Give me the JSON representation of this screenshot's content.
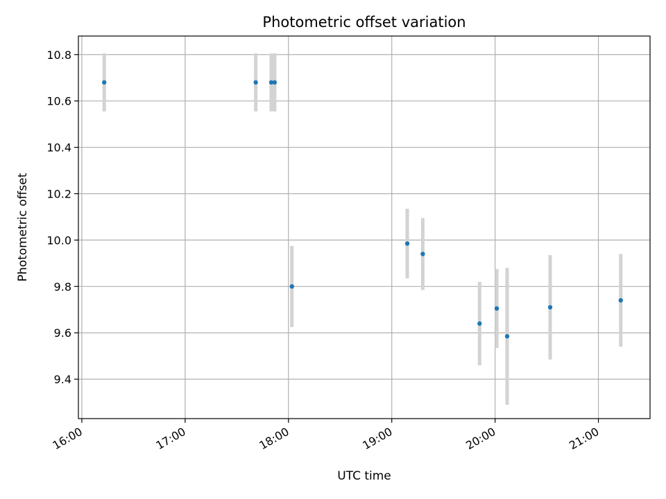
{
  "chart_data": {
    "type": "scatter",
    "title": "Photometric offset variation",
    "xlabel": "UTC time",
    "ylabel": "Photometric offset",
    "x_tick_labels": [
      "16:00",
      "17:00",
      "18:00",
      "19:00",
      "20:00",
      "21:00"
    ],
    "x_ticks_hours": [
      16,
      17,
      18,
      19,
      20,
      21
    ],
    "y_ticks": [
      9.4,
      9.6,
      9.8,
      10.0,
      10.2,
      10.4,
      10.6,
      10.8
    ],
    "y_tick_labels": [
      "9.4",
      "9.6",
      "9.8",
      "10.0",
      "10.2",
      "10.4",
      "10.6",
      "10.8"
    ],
    "xlim": [
      "15:58",
      "21:30"
    ],
    "ylim": [
      9.23,
      10.88
    ],
    "grid": true,
    "marker_color": "#1f77b4",
    "errorbar_color": "#d3d3d3",
    "points": [
      {
        "x": "16:13",
        "y": 10.68,
        "err": 0.125
      },
      {
        "x": "17:41",
        "y": 10.68,
        "err": 0.125
      },
      {
        "x": "17:50",
        "y": 10.68,
        "err": 0.125
      },
      {
        "x": "17:52",
        "y": 10.68,
        "err": 0.125
      },
      {
        "x": "18:02",
        "y": 9.8,
        "err": 0.175
      },
      {
        "x": "19:09",
        "y": 9.985,
        "err": 0.15
      },
      {
        "x": "19:18",
        "y": 9.94,
        "err": 0.155
      },
      {
        "x": "19:51",
        "y": 9.64,
        "err": 0.18
      },
      {
        "x": "20:01",
        "y": 9.705,
        "err": 0.17
      },
      {
        "x": "20:07",
        "y": 9.585,
        "err": 0.295
      },
      {
        "x": "20:32",
        "y": 9.71,
        "err": 0.225
      },
      {
        "x": "21:13",
        "y": 9.74,
        "err": 0.2
      }
    ]
  }
}
